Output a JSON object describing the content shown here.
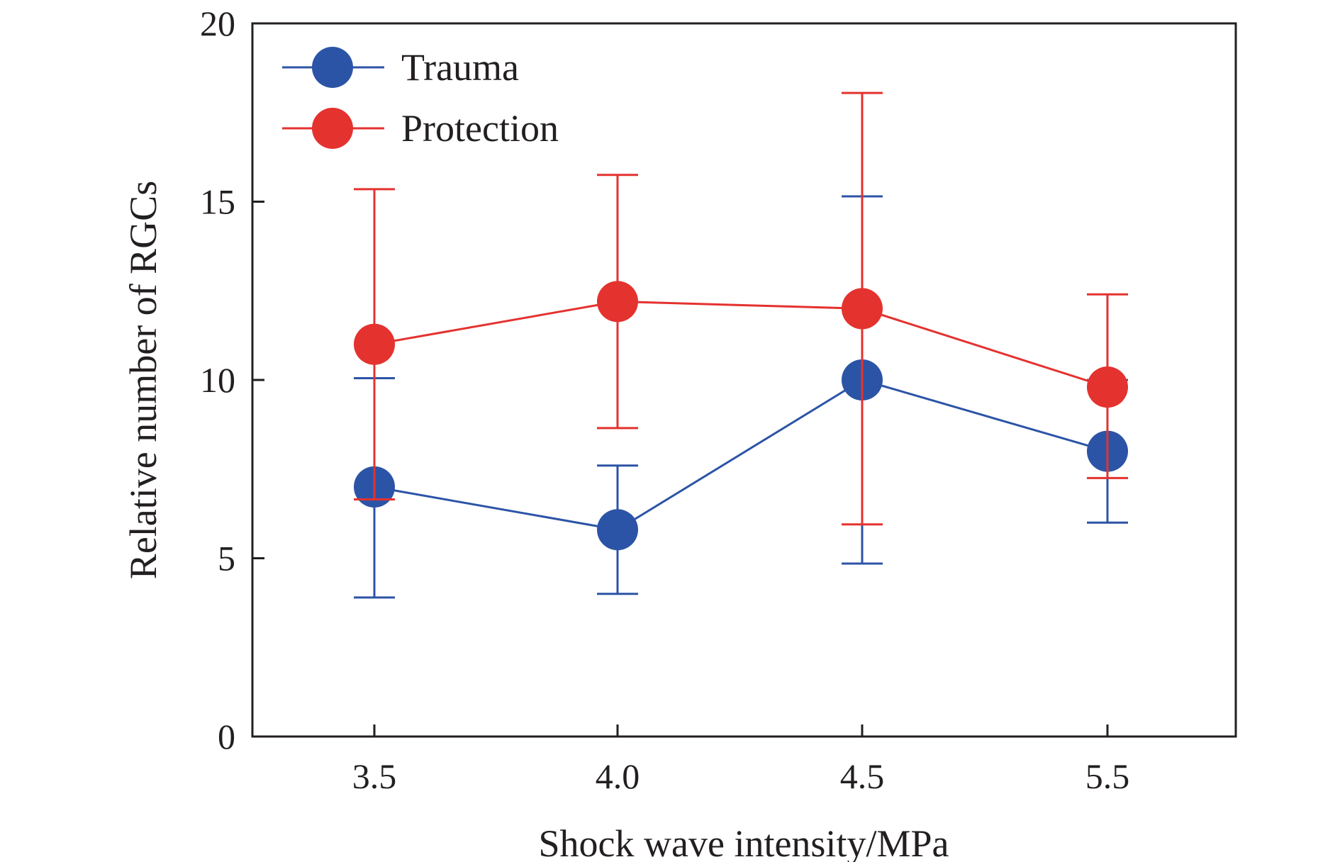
{
  "chart_data": {
    "type": "line",
    "title": "",
    "xlabel": "Shock wave intensity/MPa",
    "ylabel": "Relative number of RGCs",
    "categories": [
      "3.5",
      "4.0",
      "4.5",
      "5.5"
    ],
    "ylim": [
      0,
      20
    ],
    "yticks": [
      0,
      5,
      10,
      15,
      20
    ],
    "ytick_labels": [
      "0",
      "5",
      "10",
      "15",
      "20"
    ],
    "grid": false,
    "legend_position": "top-left",
    "series": [
      {
        "name": "Trauma",
        "color": "#2c54a6",
        "values": [
          7.0,
          5.8,
          10.0,
          8.0
        ],
        "err_low": [
          3.9,
          4.0,
          4.85,
          6.0
        ],
        "err_high": [
          10.05,
          7.6,
          15.15,
          10.0
        ]
      },
      {
        "name": "Protection",
        "color": "#e4322f",
        "values": [
          11.0,
          12.2,
          12.0,
          9.8
        ],
        "err_low": [
          6.65,
          8.65,
          5.95,
          7.25
        ],
        "err_high": [
          15.35,
          15.75,
          18.05,
          12.4
        ]
      }
    ]
  }
}
